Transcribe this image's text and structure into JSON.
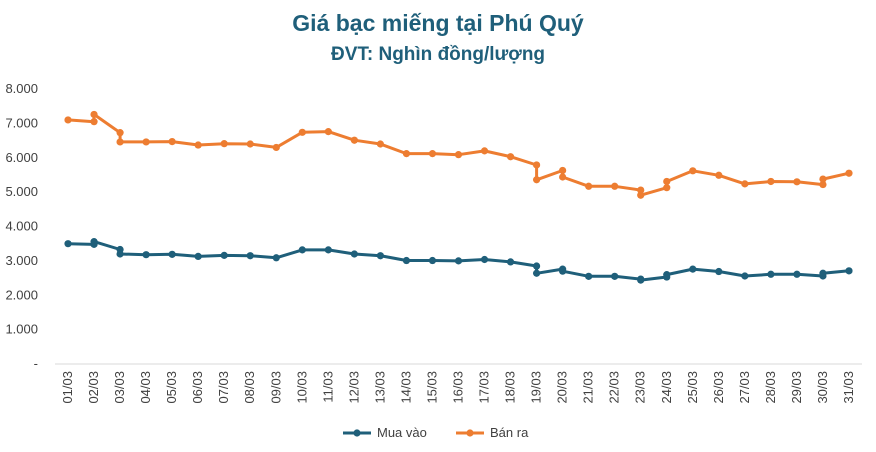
{
  "chart_data": {
    "type": "line",
    "title": "Giá bạc miếng tại Phú Quý",
    "subtitle": "ĐVT: Nghìn đồng/lượng",
    "xlabel": "",
    "ylabel": "",
    "ylim": [
      0,
      8000
    ],
    "yticks": [
      0,
      1000,
      2000,
      3000,
      4000,
      5000,
      6000,
      7000,
      8000
    ],
    "ytick_labels": [
      "-",
      "1.000",
      "2.000",
      "3.000",
      "4.000",
      "5.000",
      "6.000",
      "7.000",
      "8.000"
    ],
    "categories": [
      "01/03",
      "02/03",
      "03/03",
      "04/03",
      "05/03",
      "06/03",
      "07/03",
      "08/03",
      "09/03",
      "10/03",
      "11/03",
      "12/03",
      "13/03",
      "14/03",
      "15/03",
      "16/03",
      "17/03",
      "18/03",
      "19/03",
      "20/03",
      "21/03",
      "22/03",
      "23/03",
      "24/03",
      "25/03",
      "26/03",
      "27/03",
      "28/03",
      "29/03",
      "30/03",
      "31/03"
    ],
    "legend_position": "bottom",
    "series": [
      {
        "name": "Mua vào",
        "color": "#1f5f7a",
        "points": [
          [
            0,
            3500
          ],
          [
            1,
            3480
          ],
          [
            1,
            3560
          ],
          [
            2,
            3330
          ],
          [
            2,
            3200
          ],
          [
            3,
            3180
          ],
          [
            4,
            3190
          ],
          [
            5,
            3130
          ],
          [
            6,
            3160
          ],
          [
            7,
            3150
          ],
          [
            8,
            3090
          ],
          [
            9,
            3320
          ],
          [
            10,
            3320
          ],
          [
            11,
            3200
          ],
          [
            12,
            3150
          ],
          [
            13,
            3010
          ],
          [
            14,
            3010
          ],
          [
            15,
            3000
          ],
          [
            16,
            3040
          ],
          [
            17,
            2970
          ],
          [
            18,
            2850
          ],
          [
            18,
            2640
          ],
          [
            19,
            2760
          ],
          [
            19,
            2700
          ],
          [
            20,
            2550
          ],
          [
            21,
            2550
          ],
          [
            22,
            2470
          ],
          [
            22,
            2440
          ],
          [
            23,
            2530
          ],
          [
            23,
            2600
          ],
          [
            24,
            2760
          ],
          [
            25,
            2690
          ],
          [
            26,
            2560
          ],
          [
            27,
            2610
          ],
          [
            28,
            2610
          ],
          [
            29,
            2560
          ],
          [
            29,
            2640
          ],
          [
            30,
            2710
          ]
        ]
      },
      {
        "name": "Bán ra",
        "color": "#ed7d31",
        "points": [
          [
            0,
            7100
          ],
          [
            1,
            7050
          ],
          [
            1,
            7260
          ],
          [
            2,
            6730
          ],
          [
            2,
            6460
          ],
          [
            3,
            6460
          ],
          [
            4,
            6470
          ],
          [
            5,
            6370
          ],
          [
            6,
            6410
          ],
          [
            7,
            6400
          ],
          [
            8,
            6300
          ],
          [
            9,
            6740
          ],
          [
            10,
            6760
          ],
          [
            11,
            6510
          ],
          [
            12,
            6400
          ],
          [
            13,
            6120
          ],
          [
            14,
            6120
          ],
          [
            15,
            6090
          ],
          [
            16,
            6200
          ],
          [
            17,
            6030
          ],
          [
            18,
            5790
          ],
          [
            18,
            5360
          ],
          [
            19,
            5630
          ],
          [
            19,
            5440
          ],
          [
            20,
            5170
          ],
          [
            21,
            5170
          ],
          [
            22,
            5060
          ],
          [
            22,
            4910
          ],
          [
            23,
            5130
          ],
          [
            23,
            5310
          ],
          [
            24,
            5620
          ],
          [
            25,
            5490
          ],
          [
            26,
            5240
          ],
          [
            27,
            5310
          ],
          [
            28,
            5300
          ],
          [
            29,
            5220
          ],
          [
            29,
            5380
          ],
          [
            30,
            5550
          ]
        ]
      }
    ]
  }
}
